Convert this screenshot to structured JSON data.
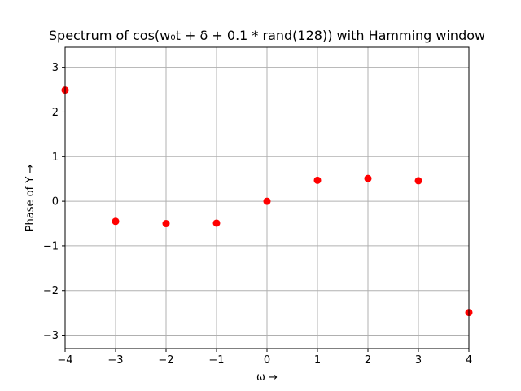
{
  "chart_data": {
    "type": "scatter",
    "title": "Spectrum of cos(w₀t + δ + 0.1 * rand(128)) with Hamming window",
    "xlabel": "ω →",
    "ylabel": "Phase of Y →",
    "xlim": [
      -4,
      4
    ],
    "ylim": [
      -3.3,
      3.45
    ],
    "xticks": [
      -4,
      -3,
      -2,
      -1,
      0,
      1,
      2,
      3,
      4
    ],
    "yticks": [
      -3,
      -2,
      -1,
      0,
      1,
      2,
      3
    ],
    "xtick_labels": [
      "−4",
      "−3",
      "−2",
      "−1",
      "0",
      "1",
      "2",
      "3",
      "4"
    ],
    "ytick_labels": [
      "−3",
      "−2",
      "−1",
      "0",
      "1",
      "2",
      "3"
    ],
    "grid": true,
    "marker_color": "#ff0000",
    "series": [
      {
        "x": [
          -4,
          -3,
          -2,
          -1,
          0,
          1,
          2,
          3,
          4
        ],
        "y": [
          2.49,
          -0.45,
          -0.5,
          -0.49,
          0.0,
          0.47,
          0.51,
          0.46,
          -2.49
        ]
      }
    ]
  }
}
